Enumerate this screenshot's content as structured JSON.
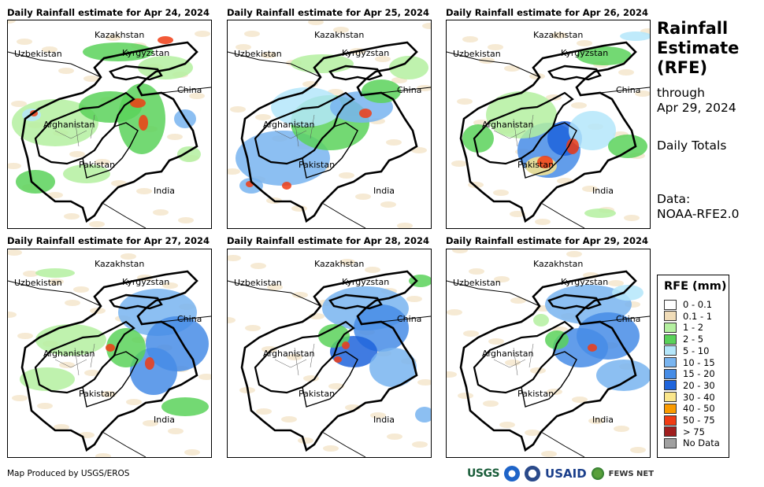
{
  "panels": [
    {
      "title": "Daily Rainfall estimate for Apr 24, 2024"
    },
    {
      "title": "Daily Rainfall estimate for Apr 25, 2024"
    },
    {
      "title": "Daily Rainfall estimate for Apr 26, 2024"
    },
    {
      "title": "Daily Rainfall estimate for Apr 27, 2024"
    },
    {
      "title": "Daily Rainfall estimate for Apr 28, 2024"
    },
    {
      "title": "Daily Rainfall estimate for Apr 29, 2024"
    }
  ],
  "map_labels": {
    "kazakhstan": "Kazakhstan",
    "uzbekistan": "Uzbekistan",
    "kyrgyzstan": "Kyrgyzstan",
    "china": "China",
    "afghanistan": "Afghanistan",
    "pakistan": "Pakistan",
    "india": "India"
  },
  "side": {
    "title_line1": "Rainfall",
    "title_line2": "Estimate",
    "title_line3": "(RFE)",
    "through": "through",
    "date": "Apr 29, 2024",
    "totals": "Daily Totals",
    "data_label": "Data:",
    "data_source": "NOAA-RFE2.0"
  },
  "legend": {
    "title": "RFE (mm)",
    "items": [
      {
        "label": "0 - 0.1",
        "color": "#ffffff"
      },
      {
        "label": "0.1 - 1",
        "color": "#f0dcb8"
      },
      {
        "label": "1 - 2",
        "color": "#b4f0a0"
      },
      {
        "label": "2 - 5",
        "color": "#5ad25a"
      },
      {
        "label": "5 - 10",
        "color": "#b4e6fa"
      },
      {
        "label": "10 - 15",
        "color": "#78b4f0"
      },
      {
        "label": "15 - 20",
        "color": "#468ce6"
      },
      {
        "label": "20 - 30",
        "color": "#1e64dc"
      },
      {
        "label": "30 - 40",
        "color": "#fae68c"
      },
      {
        "label": "40 - 50",
        "color": "#fa9b00"
      },
      {
        "label": "50 - 75",
        "color": "#f03c14"
      },
      {
        "label": "> 75",
        "color": "#a01e1e"
      },
      {
        "label": "No Data",
        "color": "#a0a0a0"
      }
    ]
  },
  "credit": "Map Produced by USGS/EROS",
  "logos": {
    "usgs": "USGS",
    "usaid": "USAID",
    "fewsnet": "FEWS NET"
  }
}
